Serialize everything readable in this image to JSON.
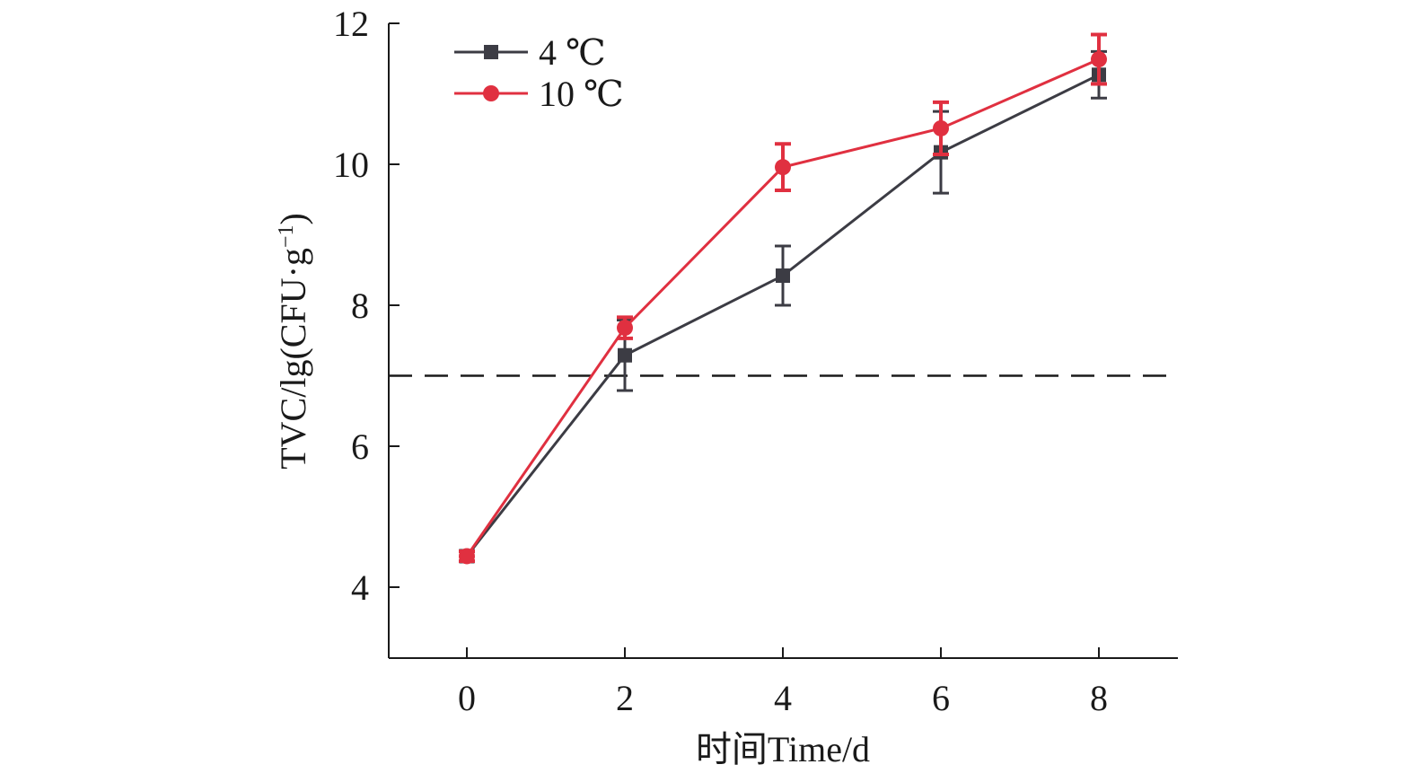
{
  "chart_data": {
    "type": "line",
    "title": "",
    "xlabel": "时间Time/d",
    "ylabel_main": "TVC/lg(CFU·g",
    "ylabel_sup": "−1",
    "ylabel_close": ")",
    "x": [
      0,
      2,
      4,
      6,
      8
    ],
    "x_ticks": [
      "0",
      "2",
      "4",
      "6",
      "8"
    ],
    "xlim": [
      -1,
      9
    ],
    "y_ticks": [
      "4",
      "6",
      "8",
      "10",
      "12"
    ],
    "ylim": [
      3,
      12
    ],
    "reference_line": {
      "y": 7,
      "style": "dashed",
      "color": "#1a1a1a"
    },
    "legend_position": "top-left",
    "grid": false,
    "series": [
      {
        "name": "4 ℃",
        "marker": "square",
        "color": "#3c3c44",
        "values": [
          4.44,
          7.29,
          8.42,
          10.17,
          11.27
        ],
        "errors": [
          0.08,
          0.5,
          0.42,
          0.58,
          0.33
        ]
      },
      {
        "name": "10 ℃",
        "marker": "circle",
        "color": "#e03040",
        "values": [
          4.44,
          7.68,
          9.96,
          10.51,
          11.49
        ],
        "errors": [
          0.07,
          0.15,
          0.33,
          0.37,
          0.35
        ]
      }
    ]
  }
}
